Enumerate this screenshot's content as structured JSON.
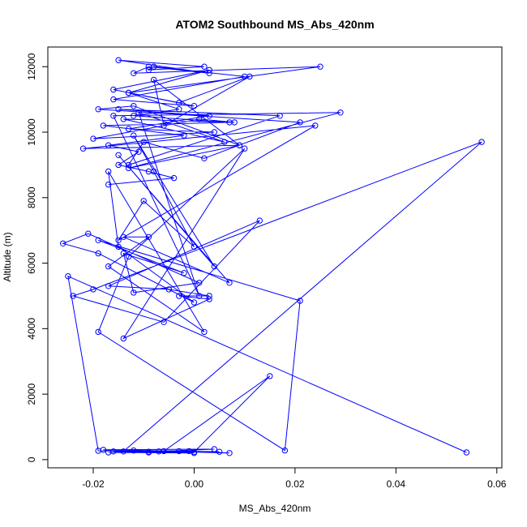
{
  "chart_data": {
    "type": "line",
    "title": "ATOM2 Southbound MS_Abs_420nm",
    "xlabel": "MS_Abs_420nm",
    "ylabel": "Altitude (m)",
    "xlim": [
      -0.029,
      0.061
    ],
    "ylim": [
      -250,
      12600
    ],
    "x_ticks": [
      -0.02,
      0.0,
      0.02,
      0.04,
      0.06
    ],
    "x_tick_labels": [
      "-0.02",
      "0.00",
      "0.02",
      "0.04",
      "0.06"
    ],
    "y_ticks": [
      0,
      2000,
      4000,
      6000,
      8000,
      10000,
      12000
    ],
    "y_tick_labels": [
      "0",
      "2000",
      "4000",
      "6000",
      "8000",
      "10000",
      "12000"
    ],
    "grid": false,
    "legend": "none",
    "marker": "open-circle",
    "color": "#0000ff",
    "series": [
      {
        "x": [
          0.054,
          -0.025,
          -0.019,
          -0.007,
          0.004,
          -0.018,
          0.005,
          -0.009,
          -0.017,
          0.0,
          -0.016,
          -0.003,
          -0.012,
          0.007,
          -0.001,
          -0.009,
          0.0,
          0.015,
          -0.006,
          -0.014,
          0.057,
          -0.02,
          -0.024,
          -0.006,
          0.013,
          -0.017,
          -0.005,
          0.003,
          -0.003,
          0.003,
          -0.014,
          0.01,
          -0.013,
          -0.019,
          0.018,
          0.021,
          -0.019,
          -0.002,
          -0.014,
          -0.012,
          0.001,
          -0.021,
          -0.026,
          -0.019,
          0.0,
          -0.015,
          -0.017,
          0.002,
          -0.017,
          -0.009,
          -0.014,
          0.007,
          -0.015,
          0.004,
          -0.012,
          -0.008,
          0.0,
          -0.01,
          -0.015,
          0.024,
          -0.022,
          0.009,
          -0.013,
          0.029,
          -0.016,
          0.001,
          -0.011,
          0.006,
          -0.014,
          0.008,
          0.001,
          -0.02,
          0.004,
          -0.013,
          0.003,
          -0.015,
          0.017,
          -0.013,
          -0.01,
          0.002,
          0.021,
          -0.019,
          -0.012,
          0.009,
          -0.008,
          -0.006,
          0.011,
          -0.003,
          -0.016,
          0.003,
          -0.013,
          0.025,
          -0.012,
          -0.009,
          0.003,
          -0.015,
          0.002,
          -0.009,
          -0.008,
          0.01,
          -0.016,
          0.0,
          -0.013,
          -0.003,
          -0.012,
          0.007,
          -0.018,
          -0.002,
          -0.017,
          -0.011,
          -0.015,
          -0.009,
          -0.004,
          -0.017
        ],
        "y": [
          220,
          5600,
          270,
          250,
          320,
          300,
          240,
          240,
          220,
          200,
          250,
          260,
          280,
          200,
          260,
          220,
          230,
          2550,
          260,
          250,
          9700,
          5200,
          5000,
          4200,
          7300,
          5300,
          5200,
          5000,
          5000,
          4900,
          3700,
          9500,
          6200,
          3900,
          280,
          4850,
          6700,
          5700,
          6300,
          5100,
          5400,
          6900,
          6600,
          6300,
          4800,
          6500,
          8800,
          3900,
          5900,
          6800,
          6800,
          5400,
          9300,
          5900,
          9900,
          8800,
          6500,
          7900,
          6700,
          10200,
          9500,
          9600,
          8900,
          10600,
          10500,
          5000,
          10600,
          9700,
          10400,
          10300,
          10400,
          9800,
          10000,
          10100,
          10500,
          10700,
          10500,
          9000,
          9700,
          9200,
          10300,
          10700,
          10800,
          9600,
          11600,
          10200,
          11700,
          10900,
          11300,
          11900,
          11200,
          12000,
          11800,
          12000,
          11800,
          12200,
          12000,
          11900,
          12000,
          11700,
          11000,
          10800,
          11200,
          10700,
          10500,
          10300,
          10200,
          9900,
          9600,
          9400,
          9000,
          8800,
          8600,
          8400
        ]
      }
    ]
  }
}
